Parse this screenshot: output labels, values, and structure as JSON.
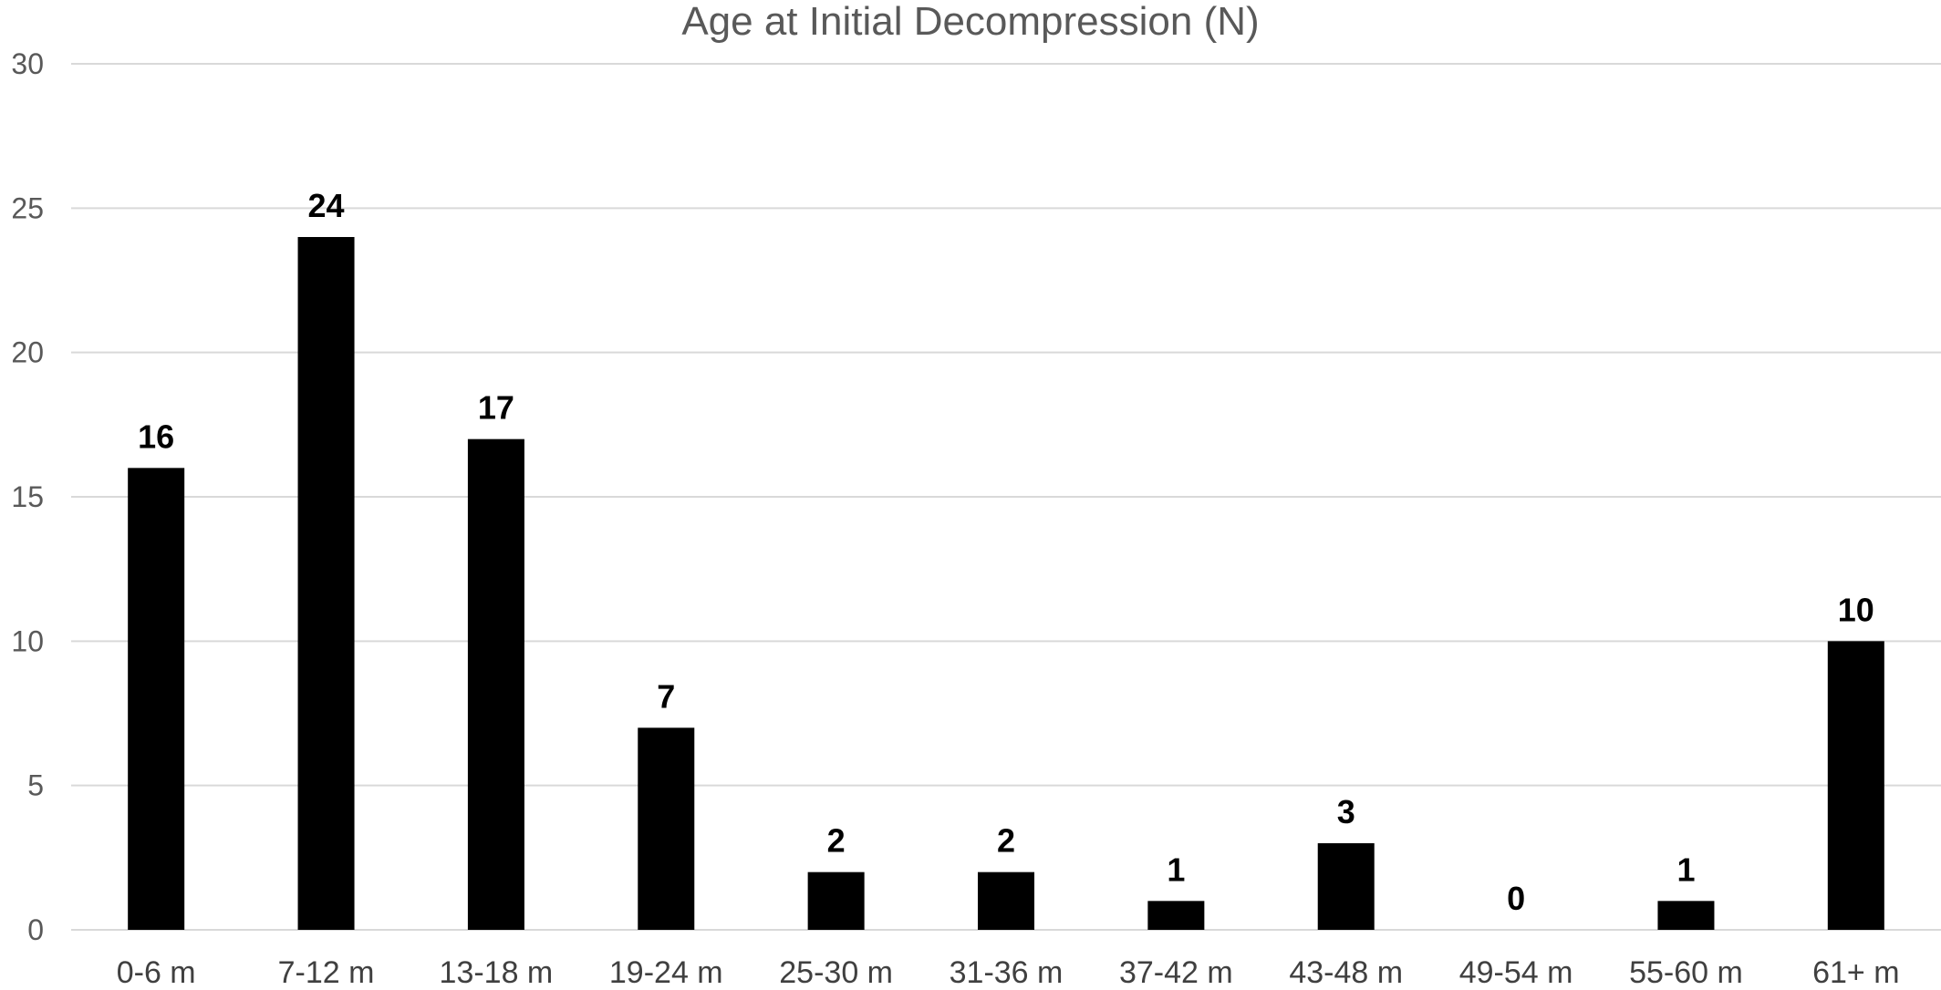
{
  "chart_data": {
    "type": "bar",
    "title": "Age at Initial Decompression (N)",
    "xlabel": "",
    "ylabel": "",
    "categories": [
      "0-6 m",
      "7-12 m",
      "13-18 m",
      "19-24 m",
      "25-30 m",
      "31-36 m",
      "37-42 m",
      "43-48 m",
      "49-54 m",
      "55-60 m",
      "61+ m"
    ],
    "values": [
      16,
      24,
      17,
      7,
      2,
      2,
      1,
      3,
      0,
      1,
      10
    ],
    "data_labels": [
      "16",
      "24",
      "17",
      "7",
      "2",
      "2",
      "1",
      "3",
      "0",
      "1",
      "10"
    ],
    "ylim": [
      0,
      30
    ],
    "yticks": [
      0,
      5,
      10,
      15,
      20,
      25,
      30
    ],
    "grid": true,
    "legend": "none",
    "colors": {
      "bar": "#000000",
      "grid": "#d9d9d9",
      "title": "#595959",
      "tick": "#595959"
    }
  }
}
